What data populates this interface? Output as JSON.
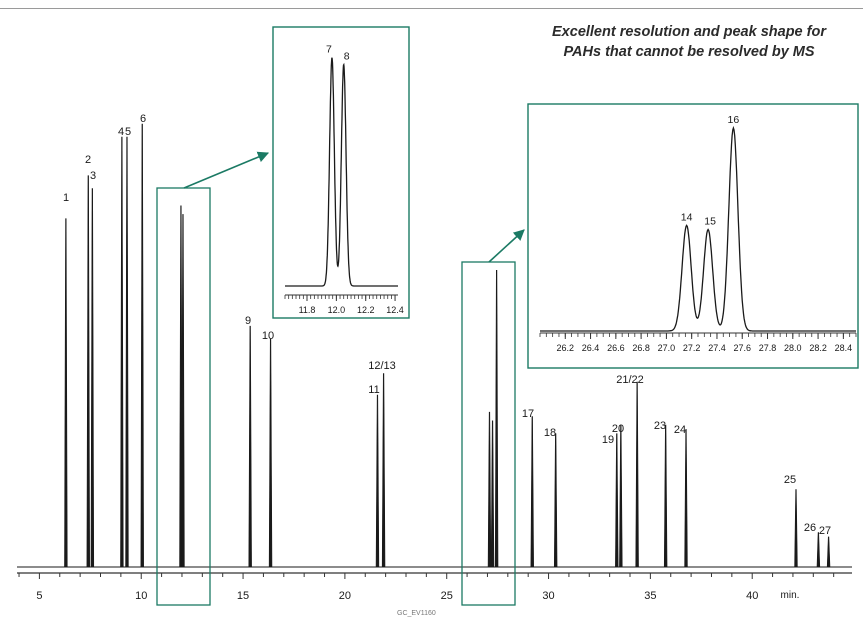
{
  "caption": {
    "line1": "Excellent resolution and peak shape for",
    "line2": "PAHs that cannot be resolved by MS"
  },
  "footer_code": "GC_EV1160",
  "colors": {
    "trace": "#1a1a1a",
    "highlight": "#1b7a64",
    "axis": "#333333"
  },
  "chart_data": [
    {
      "type": "line",
      "title": "",
      "xlabel": "min.",
      "xlim": [
        3.9,
        44.9
      ],
      "ticks": [
        5,
        10,
        15,
        20,
        25,
        30,
        35,
        40
      ],
      "grid": false,
      "peaks": [
        {
          "label": "1",
          "rt": 6.3,
          "height": 0.81
        },
        {
          "label": "2",
          "rt": 7.4,
          "height": 0.91
        },
        {
          "label": "3",
          "rt": 7.6,
          "height": 0.88
        },
        {
          "label": "4",
          "rt": 9.05,
          "height": 1.0
        },
        {
          "label": "5",
          "rt": 9.3,
          "height": 1.0
        },
        {
          "label": "6",
          "rt": 10.05,
          "height": 1.03
        },
        {
          "label": "7",
          "rt": 11.95,
          "height": 0.84
        },
        {
          "label": "8",
          "rt": 12.05,
          "height": 0.82
        },
        {
          "label": "9",
          "rt": 15.35,
          "height": 0.56
        },
        {
          "label": "10",
          "rt": 16.35,
          "height": 0.53
        },
        {
          "label": "11",
          "rt": 21.6,
          "height": 0.4
        },
        {
          "label": "12/13",
          "rt": 21.9,
          "height": 0.45
        },
        {
          "label": "14",
          "rt": 27.1,
          "height": 0.36
        },
        {
          "label": "15",
          "rt": 27.25,
          "height": 0.34
        },
        {
          "label": "16",
          "rt": 27.45,
          "height": 0.69
        },
        {
          "label": "17",
          "rt": 29.2,
          "height": 0.35
        },
        {
          "label": "18",
          "rt": 30.35,
          "height": 0.31
        },
        {
          "label": "19",
          "rt": 33.35,
          "height": 0.31
        },
        {
          "label": "20",
          "rt": 33.55,
          "height": 0.33
        },
        {
          "label": "21/22",
          "rt": 34.35,
          "height": 0.43
        },
        {
          "label": "23",
          "rt": 35.75,
          "height": 0.33
        },
        {
          "label": "24",
          "rt": 36.75,
          "height": 0.32
        },
        {
          "label": "25",
          "rt": 42.15,
          "height": 0.18
        },
        {
          "label": "26",
          "rt": 43.25,
          "height": 0.08
        },
        {
          "label": "27",
          "rt": 43.75,
          "height": 0.07
        }
      ]
    },
    {
      "type": "line",
      "title": "",
      "xlim": [
        11.65,
        12.42
      ],
      "ticks": [
        11.8,
        12.0,
        12.2,
        12.4
      ],
      "tick_labels": [
        "11.8",
        "12.0",
        "12.2",
        "12.4"
      ],
      "peaks": [
        {
          "label": "7",
          "rt": 11.97,
          "height": 0.98
        },
        {
          "label": "8",
          "rt": 12.05,
          "height": 0.95
        }
      ]
    },
    {
      "type": "line",
      "title": "",
      "xlim": [
        26.0,
        28.5
      ],
      "ticks": [
        26.2,
        26.4,
        26.6,
        26.8,
        27.0,
        27.2,
        27.4,
        27.6,
        27.8,
        28.0,
        28.2,
        28.4
      ],
      "tick_labels": [
        "26.2",
        "26.4",
        "26.6",
        "26.8",
        "27.0",
        "27.2",
        "27.4",
        "27.6",
        "27.8",
        "28.0",
        "28.2",
        "28.4"
      ],
      "peaks": [
        {
          "label": "14",
          "rt": 27.16,
          "height": 0.52
        },
        {
          "label": "15",
          "rt": 27.33,
          "height": 0.5
        },
        {
          "label": "16",
          "rt": 27.53,
          "height": 1.0
        }
      ]
    }
  ]
}
